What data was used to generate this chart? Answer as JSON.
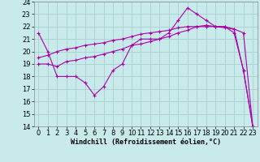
{
  "xlabel": "Windchill (Refroidissement éolien,°C)",
  "background_color": "#c8eaea",
  "grid_color": "#a8d0d0",
  "line_color": "#aa00aa",
  "xlim": [
    -0.5,
    23.5
  ],
  "ylim": [
    14,
    24
  ],
  "xticks": [
    0,
    1,
    2,
    3,
    4,
    5,
    6,
    7,
    8,
    9,
    10,
    11,
    12,
    13,
    14,
    15,
    16,
    17,
    18,
    19,
    20,
    21,
    22,
    23
  ],
  "yticks": [
    14,
    15,
    16,
    17,
    18,
    19,
    20,
    21,
    22,
    23,
    24
  ],
  "line1_x": [
    0,
    1,
    2,
    3,
    4,
    5,
    6,
    7,
    8,
    9,
    10,
    11,
    12,
    13,
    14,
    15,
    16,
    17,
    18,
    19,
    20,
    21,
    22,
    23
  ],
  "line1_y": [
    21.5,
    20.0,
    18.0,
    18.0,
    18.0,
    17.5,
    16.5,
    17.2,
    18.5,
    19.0,
    20.5,
    21.0,
    21.0,
    21.0,
    21.5,
    22.5,
    23.5,
    23.0,
    22.5,
    22.0,
    22.0,
    21.5,
    18.5,
    14.0
  ],
  "line2_x": [
    0,
    1,
    2,
    3,
    4,
    5,
    6,
    7,
    8,
    9,
    10,
    11,
    12,
    13,
    14,
    15,
    16,
    17,
    18,
    19,
    20,
    21,
    22,
    23
  ],
  "line2_y": [
    19.0,
    19.0,
    18.8,
    19.2,
    19.3,
    19.5,
    19.6,
    19.8,
    20.0,
    20.2,
    20.5,
    20.6,
    20.8,
    21.0,
    21.2,
    21.5,
    21.7,
    22.0,
    22.0,
    22.0,
    22.0,
    21.8,
    21.5,
    14.0
  ],
  "line3_x": [
    0,
    1,
    2,
    3,
    4,
    5,
    6,
    7,
    8,
    9,
    10,
    11,
    12,
    13,
    14,
    15,
    16,
    17,
    18,
    19,
    20,
    21,
    22,
    23
  ],
  "line3_y": [
    19.5,
    19.7,
    20.0,
    20.2,
    20.3,
    20.5,
    20.6,
    20.7,
    20.9,
    21.0,
    21.2,
    21.4,
    21.5,
    21.6,
    21.7,
    21.9,
    22.0,
    22.0,
    22.1,
    22.0,
    21.9,
    21.8,
    18.5,
    14.0
  ],
  "tick_fontsize": 6,
  "xlabel_fontsize": 6
}
